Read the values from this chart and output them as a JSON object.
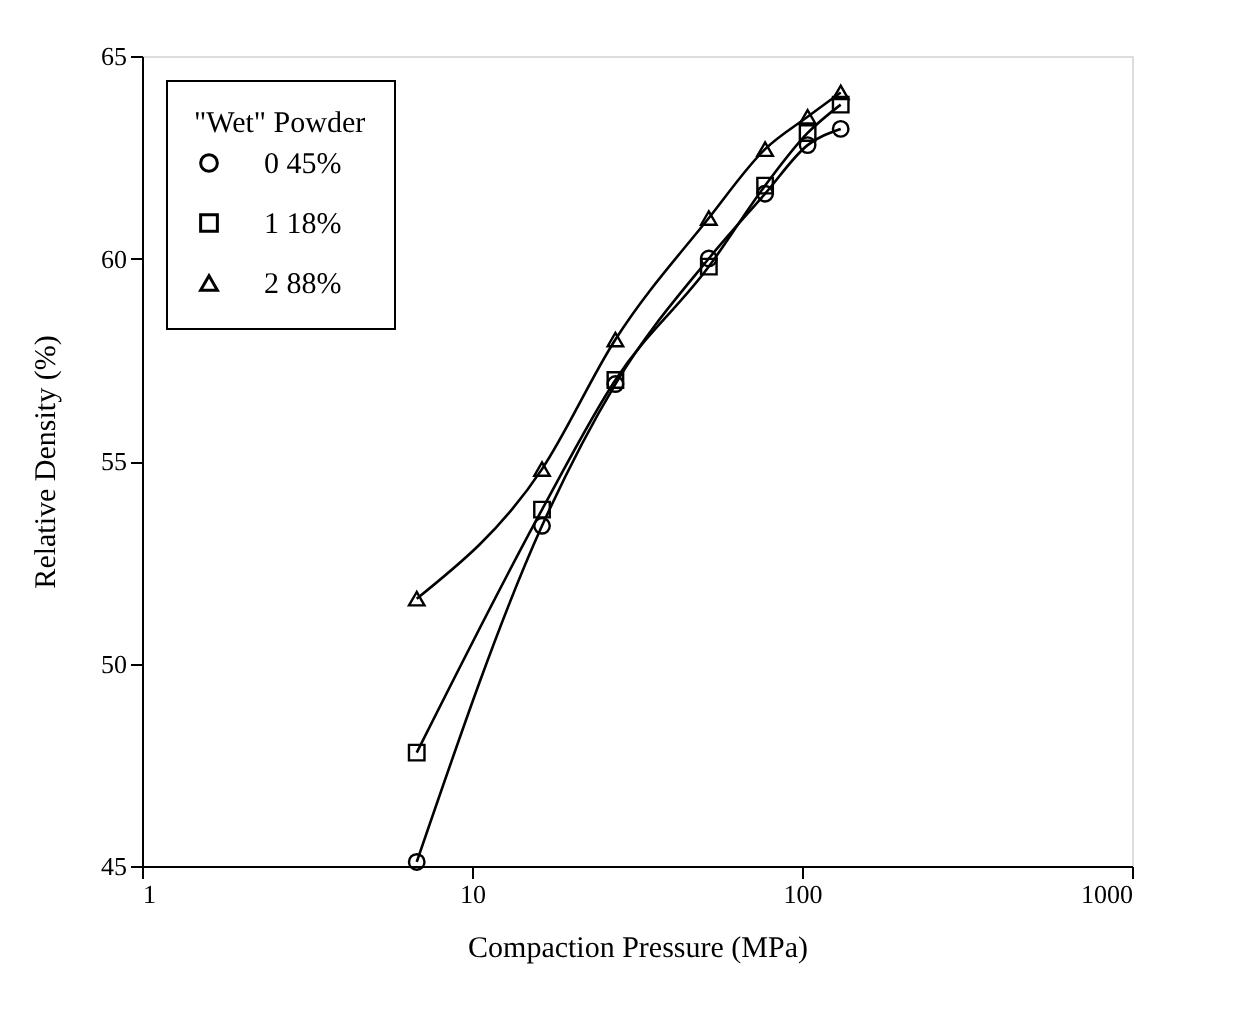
{
  "chart_data": {
    "type": "line",
    "xlabel": "Compaction Pressure (MPa)",
    "ylabel": "Relative Density (%)",
    "legend_title": "\"Wet\" Powder",
    "x": [
      6.8,
      16.3,
      27.2,
      52.2,
      77.3,
      104,
      131
    ],
    "series": [
      {
        "name": "0 45%",
        "color": "#000000",
        "marker": "circle",
        "values": [
          45.1,
          53.4,
          56.9,
          60.0,
          61.6,
          62.8,
          63.2
        ]
      },
      {
        "name": "1 18%",
        "color": "#000000",
        "marker": "square",
        "values": [
          47.8,
          53.8,
          57.0,
          59.8,
          61.8,
          63.1,
          63.8
        ]
      },
      {
        "name": "2 88%",
        "color": "#000000",
        "marker": "triangle",
        "values": [
          51.6,
          54.8,
          58.0,
          61.0,
          62.7,
          63.5,
          64.1
        ]
      }
    ],
    "log": "x",
    "xlim": [
      1,
      1000
    ],
    "xticks": [
      1,
      10,
      100,
      1000
    ],
    "ylim": [
      45,
      65
    ],
    "yticks": [
      45,
      50,
      55,
      60,
      65
    ],
    "grid": false,
    "legend": "top left",
    "line_style": "solid"
  }
}
